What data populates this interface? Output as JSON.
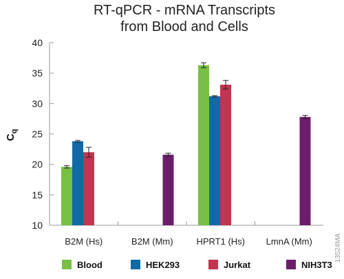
{
  "chart_data": {
    "type": "bar",
    "title_lines": [
      "RT-qPCR - mRNA Transcripts",
      "from Blood and Cells"
    ],
    "xlabel": "",
    "ylabel": "Cq",
    "ylabel_main": "C",
    "ylabel_sub": "q",
    "ylim": [
      10,
      40
    ],
    "yticks": [
      10,
      15,
      20,
      25,
      30,
      35,
      40
    ],
    "categories": [
      "B2M (Hs)",
      "B2M (Mm)",
      "HPRT1 (Hs)",
      "LmnA (Mm)"
    ],
    "series": [
      {
        "name": "Blood",
        "color": "#77c043",
        "values": [
          19.6,
          null,
          36.3,
          null
        ],
        "errors": [
          0.2,
          null,
          0.4,
          null
        ]
      },
      {
        "name": "HEK293",
        "color": "#0f6aa6",
        "values": [
          23.8,
          null,
          31.2,
          null
        ],
        "errors": [
          0.15,
          null,
          0.1,
          null
        ]
      },
      {
        "name": "Jurkat",
        "color": "#c0354f",
        "values": [
          22.0,
          null,
          33.1,
          null
        ],
        "errors": [
          0.8,
          null,
          0.7,
          null
        ]
      },
      {
        "name": "NIH3T3",
        "color": "#6b1d6a",
        "values": [
          null,
          21.6,
          null,
          27.8
        ],
        "errors": [
          null,
          0.25,
          null,
          0.25
        ]
      }
    ],
    "grid": false,
    "legend_position": "bottom"
  },
  "side_code": "13524MA"
}
